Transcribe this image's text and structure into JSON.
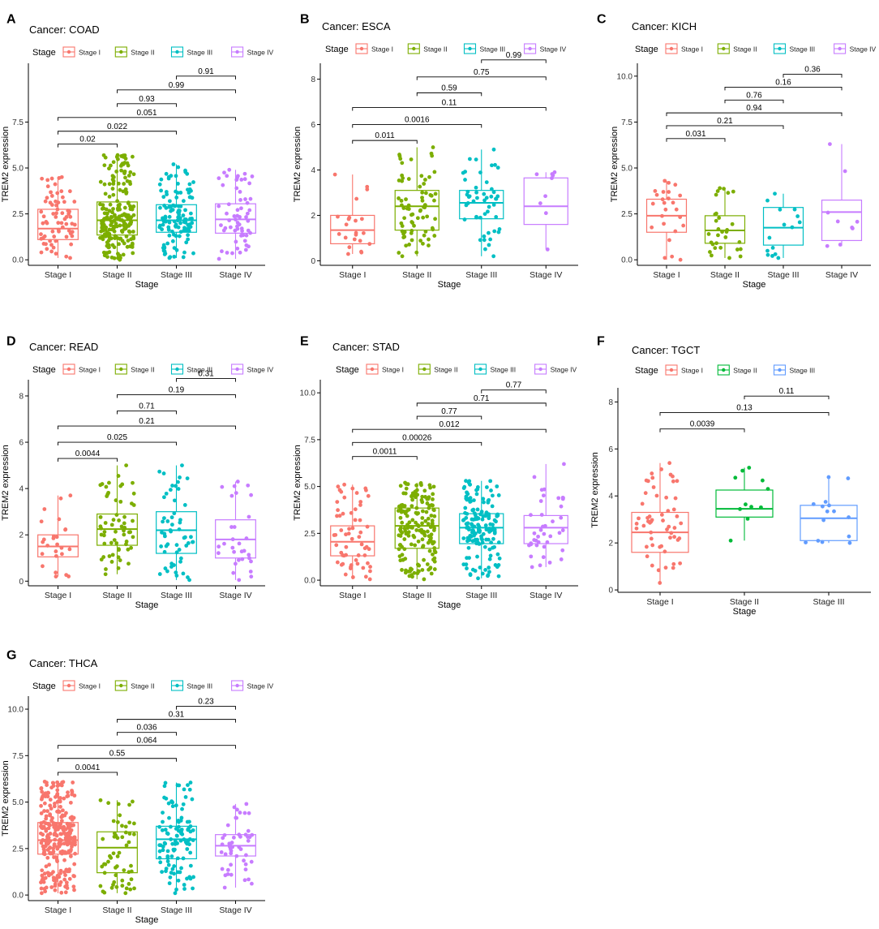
{
  "figure": {
    "stage_colors": {
      "Stage I": "#F8766D",
      "Stage II": "#7CAE00",
      "Stage III": "#00BFC4",
      "Stage IV": "#C77CFF"
    },
    "tgct_colors": {
      "Stage I": "#F8766D",
      "Stage II": "#00BA38",
      "Stage III": "#619CFF"
    },
    "legend_title": "Stage",
    "y_label": "TREM2 expression",
    "x_label": "Stage"
  },
  "chart_data": [
    {
      "type": "box",
      "letter": "A",
      "title": "Cancer: COAD",
      "categories": [
        "Stage I",
        "Stage II",
        "Stage III",
        "Stage IV"
      ],
      "ylim": [
        -0.3,
        10.7
      ],
      "yticks": [
        0.0,
        2.5,
        5.0,
        7.5
      ],
      "ytick_labels": [
        "0.0",
        "2.5",
        "5.0",
        "7.5"
      ],
      "xlabel": "Stage",
      "ylabel": "TREM2 expression",
      "boxes": [
        {
          "q1": 1.1,
          "median": 1.7,
          "q3": 2.75,
          "wlo": 0.1,
          "whi": 4.5,
          "n": 70
        },
        {
          "q1": 1.35,
          "median": 2.15,
          "q3": 3.15,
          "wlo": 0.0,
          "whi": 5.7,
          "n": 200
        },
        {
          "q1": 1.5,
          "median": 2.15,
          "q3": 3.0,
          "wlo": 0.1,
          "whi": 5.2,
          "n": 120
        },
        {
          "q1": 1.45,
          "median": 2.2,
          "q3": 3.05,
          "wlo": 0.05,
          "whi": 4.9,
          "n": 60
        }
      ],
      "comparisons": [
        {
          "from": 0,
          "to": 1,
          "y": 6.3,
          "label": "0.02"
        },
        {
          "from": 0,
          "to": 2,
          "y": 7.0,
          "label": "0.022"
        },
        {
          "from": 0,
          "to": 3,
          "y": 7.75,
          "label": "0.051"
        },
        {
          "from": 1,
          "to": 2,
          "y": 8.5,
          "label": "0.93"
        },
        {
          "from": 1,
          "to": 3,
          "y": 9.25,
          "label": "0.99"
        },
        {
          "from": 2,
          "to": 3,
          "y": 10.0,
          "label": "0.91"
        }
      ]
    },
    {
      "type": "box",
      "letter": "B",
      "title": "Cancer: ESCA",
      "categories": [
        "Stage I",
        "Stage II",
        "Stage III",
        "Stage IV"
      ],
      "ylim": [
        -0.2,
        8.7
      ],
      "yticks": [
        0,
        2,
        4,
        6,
        8
      ],
      "ytick_labels": [
        "0",
        "2",
        "4",
        "6",
        "8"
      ],
      "xlabel": "Stage",
      "ylabel": "TREM2 expression",
      "boxes": [
        {
          "q1": 0.75,
          "median": 1.35,
          "q3": 2.0,
          "wlo": 0.3,
          "whi": 3.8,
          "n": 22
        },
        {
          "q1": 1.35,
          "median": 2.4,
          "q3": 3.1,
          "wlo": 0.2,
          "whi": 5.0,
          "n": 75
        },
        {
          "q1": 1.85,
          "median": 2.55,
          "q3": 3.1,
          "wlo": 0.2,
          "whi": 4.9,
          "n": 50
        },
        {
          "q1": 1.6,
          "median": 2.4,
          "q3": 3.65,
          "wlo": 0.5,
          "whi": 3.9,
          "n": 9
        }
      ],
      "comparisons": [
        {
          "from": 0,
          "to": 1,
          "y": 5.3,
          "label": "0.011"
        },
        {
          "from": 0,
          "to": 2,
          "y": 6.0,
          "label": "0.0016"
        },
        {
          "from": 0,
          "to": 3,
          "y": 6.75,
          "label": "0.11"
        },
        {
          "from": 1,
          "to": 2,
          "y": 7.4,
          "label": "0.59"
        },
        {
          "from": 1,
          "to": 3,
          "y": 8.1,
          "label": "0.75"
        },
        {
          "from": 2,
          "to": 3,
          "y": 8.85,
          "label": "0.99"
        }
      ]
    },
    {
      "type": "box",
      "letter": "C",
      "title": "Cancer: KICH",
      "categories": [
        "Stage I",
        "Stage II",
        "Stage III",
        "Stage IV"
      ],
      "ylim": [
        -0.3,
        10.7
      ],
      "yticks": [
        0.0,
        2.5,
        5.0,
        7.5,
        10.0
      ],
      "ytick_labels": [
        "0.0",
        "2.5",
        "5.0",
        "7.5",
        "10.0"
      ],
      "xlabel": "Stage",
      "ylabel": "TREM2 expression",
      "boxes": [
        {
          "q1": 1.5,
          "median": 2.4,
          "q3": 3.3,
          "wlo": 0.0,
          "whi": 4.3,
          "n": 25
        },
        {
          "q1": 0.9,
          "median": 1.6,
          "q3": 2.4,
          "wlo": 0.1,
          "whi": 3.9,
          "n": 30
        },
        {
          "q1": 0.8,
          "median": 1.75,
          "q3": 2.85,
          "wlo": 0.1,
          "whi": 3.6,
          "n": 15
        },
        {
          "q1": 1.05,
          "median": 2.6,
          "q3": 3.25,
          "wlo": 0.75,
          "whi": 6.3,
          "n": 9
        }
      ],
      "comparisons": [
        {
          "from": 0,
          "to": 1,
          "y": 6.6,
          "label": "0.031"
        },
        {
          "from": 0,
          "to": 2,
          "y": 7.3,
          "label": "0.21"
        },
        {
          "from": 0,
          "to": 3,
          "y": 8.0,
          "label": "0.94"
        },
        {
          "from": 1,
          "to": 2,
          "y": 8.7,
          "label": "0.76"
        },
        {
          "from": 1,
          "to": 3,
          "y": 9.4,
          "label": "0.16"
        },
        {
          "from": 2,
          "to": 3,
          "y": 10.1,
          "label": "0.36"
        }
      ]
    },
    {
      "type": "box",
      "letter": "D",
      "title": "Cancer: READ",
      "categories": [
        "Stage I",
        "Stage II",
        "Stage III",
        "Stage IV"
      ],
      "ylim": [
        -0.2,
        8.7
      ],
      "yticks": [
        0,
        2,
        4,
        6,
        8
      ],
      "ytick_labels": [
        "0",
        "2",
        "4",
        "6",
        "8"
      ],
      "xlabel": "Stage",
      "ylabel": "TREM2 expression",
      "boxes": [
        {
          "q1": 1.05,
          "median": 1.5,
          "q3": 2.0,
          "wlo": 0.2,
          "whi": 3.7,
          "n": 25
        },
        {
          "q1": 1.55,
          "median": 2.25,
          "q3": 2.9,
          "wlo": 0.3,
          "whi": 5.0,
          "n": 60
        },
        {
          "q1": 1.2,
          "median": 2.2,
          "q3": 3.0,
          "wlo": 0.05,
          "whi": 5.0,
          "n": 55
        },
        {
          "q1": 1.0,
          "median": 1.8,
          "q3": 2.65,
          "wlo": 0.05,
          "whi": 4.3,
          "n": 30
        }
      ],
      "comparisons": [
        {
          "from": 0,
          "to": 1,
          "y": 5.3,
          "label": "0.0044"
        },
        {
          "from": 0,
          "to": 2,
          "y": 6.0,
          "label": "0.025"
        },
        {
          "from": 0,
          "to": 3,
          "y": 6.7,
          "label": "0.21"
        },
        {
          "from": 1,
          "to": 2,
          "y": 7.35,
          "label": "0.71"
        },
        {
          "from": 1,
          "to": 3,
          "y": 8.05,
          "label": "0.19"
        },
        {
          "from": 2,
          "to": 3,
          "y": 8.75,
          "label": "0.31"
        }
      ]
    },
    {
      "type": "box",
      "letter": "E",
      "title": "Cancer: STAD",
      "categories": [
        "Stage I",
        "Stage II",
        "Stage III",
        "Stage IV"
      ],
      "ylim": [
        -0.3,
        10.7
      ],
      "yticks": [
        0.0,
        2.5,
        5.0,
        7.5,
        10.0
      ],
      "ytick_labels": [
        "0.0",
        "2.5",
        "5.0",
        "7.5",
        "10.0"
      ],
      "xlabel": "Stage",
      "ylabel": "TREM2 expression",
      "boxes": [
        {
          "q1": 1.3,
          "median": 2.05,
          "q3": 2.9,
          "wlo": 0.05,
          "whi": 5.1,
          "n": 60
        },
        {
          "q1": 1.7,
          "median": 2.9,
          "q3": 3.85,
          "wlo": 0.05,
          "whi": 5.2,
          "n": 170
        },
        {
          "q1": 1.95,
          "median": 2.8,
          "q3": 3.55,
          "wlo": 0.1,
          "whi": 5.3,
          "n": 160
        },
        {
          "q1": 1.95,
          "median": 2.8,
          "q3": 3.45,
          "wlo": 0.7,
          "whi": 6.2,
          "n": 40
        }
      ],
      "comparisons": [
        {
          "from": 0,
          "to": 1,
          "y": 6.6,
          "label": "0.0011"
        },
        {
          "from": 0,
          "to": 2,
          "y": 7.35,
          "label": "0.00026"
        },
        {
          "from": 0,
          "to": 3,
          "y": 8.05,
          "label": "0.012"
        },
        {
          "from": 1,
          "to": 2,
          "y": 8.75,
          "label": "0.77"
        },
        {
          "from": 1,
          "to": 3,
          "y": 9.45,
          "label": "0.71"
        },
        {
          "from": 2,
          "to": 3,
          "y": 10.15,
          "label": "0.77"
        }
      ]
    },
    {
      "type": "box",
      "letter": "F",
      "title": "Cancer: TGCT",
      "palette": "tgct",
      "categories": [
        "Stage I",
        "Stage II",
        "Stage III"
      ],
      "ylim": [
        -0.1,
        8.6
      ],
      "yticks": [
        0,
        2,
        4,
        6,
        8
      ],
      "ytick_labels": [
        "0",
        "2",
        "4",
        "6",
        "8"
      ],
      "xlabel": "Stage",
      "ylabel": "TREM2 expression",
      "boxes": [
        {
          "q1": 1.6,
          "median": 2.45,
          "q3": 3.3,
          "wlo": 0.3,
          "whi": 5.4,
          "n": 55
        },
        {
          "q1": 3.1,
          "median": 3.45,
          "q3": 4.25,
          "wlo": 2.1,
          "whi": 5.2,
          "n": 11
        },
        {
          "q1": 2.1,
          "median": 3.05,
          "q3": 3.6,
          "wlo": 2.0,
          "whi": 4.8,
          "n": 15
        }
      ],
      "comparisons": [
        {
          "from": 0,
          "to": 1,
          "y": 6.85,
          "label": "0.0039"
        },
        {
          "from": 0,
          "to": 2,
          "y": 7.55,
          "label": "0.13"
        },
        {
          "from": 1,
          "to": 2,
          "y": 8.25,
          "label": "0.11"
        }
      ]
    },
    {
      "type": "box",
      "letter": "G",
      "title": "Cancer: THCA",
      "categories": [
        "Stage I",
        "Stage II",
        "Stage III",
        "Stage IV"
      ],
      "ylim": [
        -0.3,
        10.7
      ],
      "yticks": [
        0.0,
        2.5,
        5.0,
        7.5,
        10.0
      ],
      "ytick_labels": [
        "0.0",
        "2.5",
        "5.0",
        "7.5",
        "10.0"
      ],
      "xlabel": "Stage",
      "ylabel": "TREM2 expression",
      "boxes": [
        {
          "q1": 2.2,
          "median": 2.95,
          "q3": 3.9,
          "wlo": 0.1,
          "whi": 6.1,
          "n": 280
        },
        {
          "q1": 1.2,
          "median": 2.55,
          "q3": 3.4,
          "wlo": 0.1,
          "whi": 5.1,
          "n": 55
        },
        {
          "q1": 1.95,
          "median": 3.0,
          "q3": 3.7,
          "wlo": 0.1,
          "whi": 6.05,
          "n": 110
        },
        {
          "q1": 2.1,
          "median": 2.65,
          "q3": 3.25,
          "wlo": 0.4,
          "whi": 4.9,
          "n": 50
        }
      ],
      "comparisons": [
        {
          "from": 0,
          "to": 1,
          "y": 6.6,
          "label": "0.0041"
        },
        {
          "from": 0,
          "to": 2,
          "y": 7.35,
          "label": "0.55"
        },
        {
          "from": 0,
          "to": 3,
          "y": 8.05,
          "label": "0.064"
        },
        {
          "from": 1,
          "to": 2,
          "y": 8.75,
          "label": "0.036"
        },
        {
          "from": 1,
          "to": 3,
          "y": 9.45,
          "label": "0.31"
        },
        {
          "from": 2,
          "to": 3,
          "y": 10.15,
          "label": "0.23"
        }
      ]
    }
  ]
}
